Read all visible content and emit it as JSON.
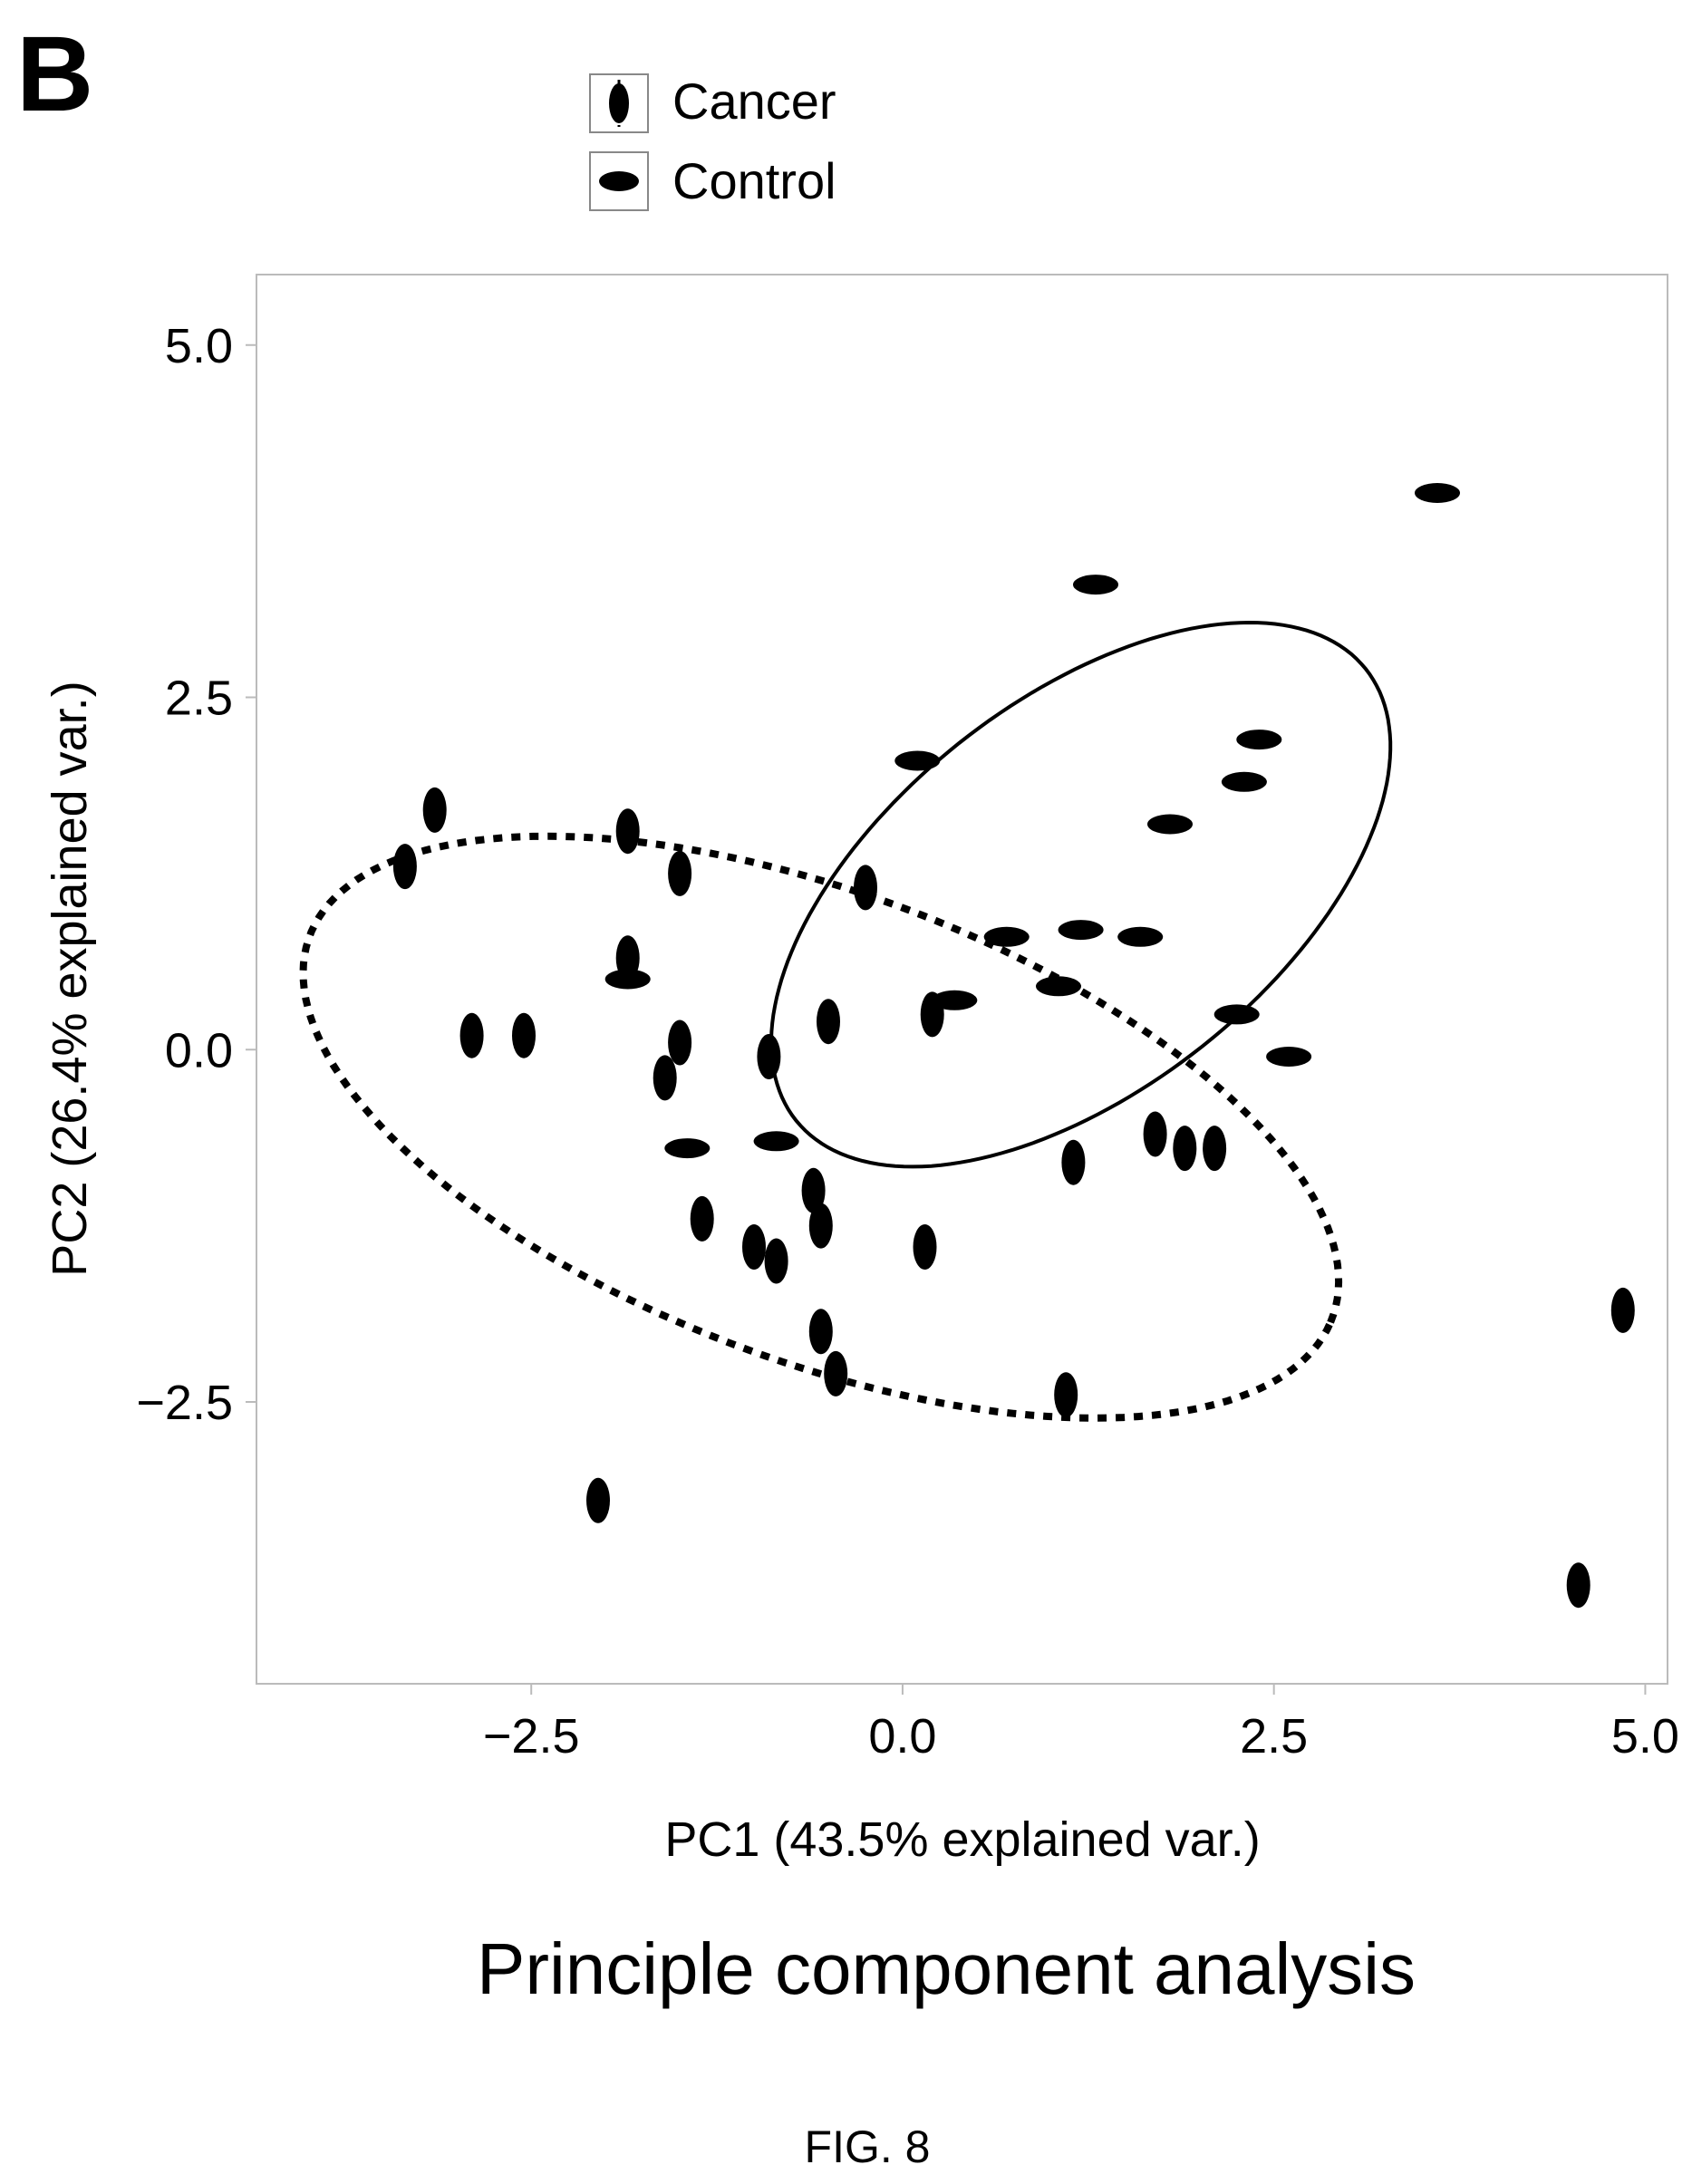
{
  "panel_label": "B",
  "figure_caption": "FIG. 8",
  "chart_data": {
    "type": "scatter",
    "title": "Principle component analysis",
    "xlabel": "PC1 (43.5% explained var.)",
    "ylabel": "PC2 (26.4% explained var.)",
    "xlim": [
      -4.35,
      5.15
    ],
    "ylim": [
      -4.5,
      5.5
    ],
    "xticks": [
      -2.5,
      0.0,
      2.5,
      5.0
    ],
    "xtick_labels": [
      "−2.5",
      "0.0",
      "2.5",
      "5.0"
    ],
    "yticks": [
      -2.5,
      0.0,
      2.5,
      5.0
    ],
    "ytick_labels": [
      "−2.5",
      "0.0",
      "2.5",
      "5.0"
    ],
    "grid": false,
    "legend_position": "top-left",
    "series": [
      {
        "name": "Cancer",
        "marker": "vertical-ellipse",
        "ellipse_style": "dashed",
        "points": [
          [
            -3.35,
            1.3
          ],
          [
            -3.15,
            1.7
          ],
          [
            -2.9,
            0.1
          ],
          [
            -2.55,
            0.1
          ],
          [
            -1.85,
            1.55
          ],
          [
            -1.85,
            0.65
          ],
          [
            -1.5,
            1.25
          ],
          [
            -1.6,
            -0.2
          ],
          [
            -1.5,
            0.05
          ],
          [
            -1.35,
            -1.2
          ],
          [
            -1.0,
            -1.4
          ],
          [
            -0.85,
            -1.5
          ],
          [
            -0.9,
            -0.05
          ],
          [
            -0.6,
            -1.0
          ],
          [
            -0.55,
            -1.25
          ],
          [
            -0.5,
            0.2
          ],
          [
            -0.55,
            -2.0
          ],
          [
            -0.45,
            -2.3
          ],
          [
            -0.25,
            1.15
          ],
          [
            0.15,
            -1.4
          ],
          [
            0.2,
            0.25
          ],
          [
            1.15,
            -0.8
          ],
          [
            1.1,
            -2.45
          ],
          [
            1.7,
            -0.6
          ],
          [
            1.9,
            -0.7
          ],
          [
            2.1,
            -0.7
          ],
          [
            -2.05,
            -3.2
          ],
          [
            4.55,
            -3.8
          ],
          [
            4.85,
            -1.85
          ]
        ]
      },
      {
        "name": "Control",
        "marker": "horizontal-ellipse",
        "ellipse_style": "solid",
        "points": [
          [
            3.6,
            3.95
          ],
          [
            1.3,
            3.3
          ],
          [
            2.4,
            2.2
          ],
          [
            2.3,
            1.9
          ],
          [
            0.1,
            2.05
          ],
          [
            1.8,
            1.6
          ],
          [
            1.2,
            0.85
          ],
          [
            1.6,
            0.8
          ],
          [
            0.7,
            0.8
          ],
          [
            1.05,
            0.45
          ],
          [
            2.25,
            0.25
          ],
          [
            2.6,
            -0.05
          ],
          [
            0.35,
            0.35
          ],
          [
            -0.85,
            -0.65
          ],
          [
            -1.45,
            -0.7
          ],
          [
            -1.85,
            0.5
          ]
        ]
      }
    ],
    "confidence_ellipses": [
      {
        "series": "Cancer",
        "center": [
          -0.55,
          -0.55
        ],
        "semi_major": 3.7,
        "semi_minor": 1.65,
        "angle_deg": -22
      },
      {
        "series": "Control",
        "center": [
          1.2,
          1.1
        ],
        "semi_major": 2.5,
        "semi_minor": 1.35,
        "angle_deg": 41
      }
    ]
  }
}
